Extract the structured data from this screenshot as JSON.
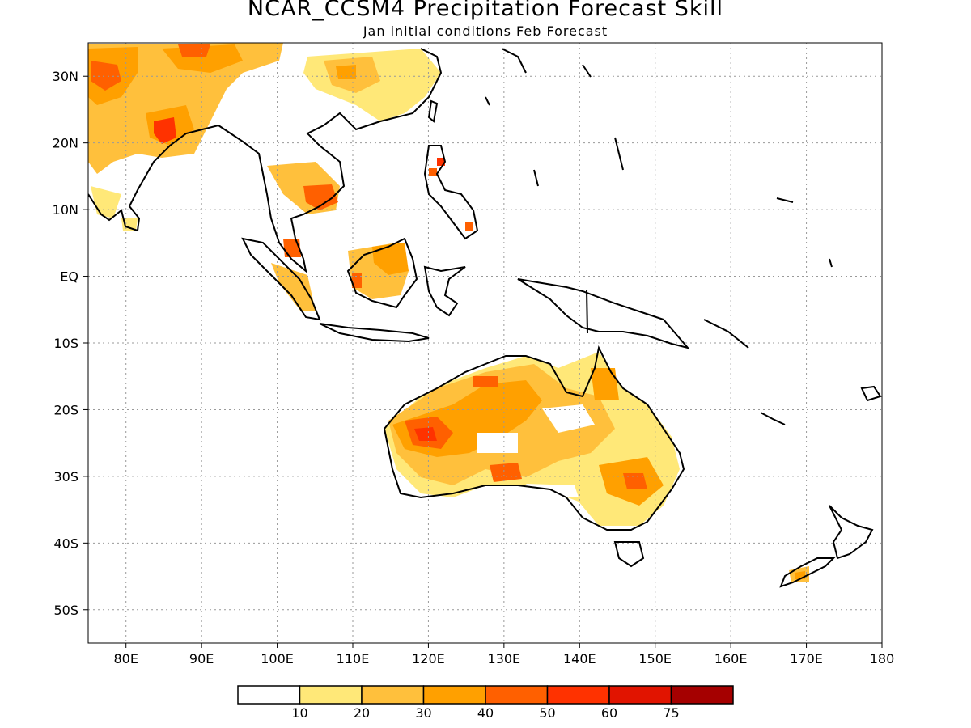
{
  "title": "NCAR_CCSM4 Precipitation Forecast Skill",
  "subtitle": "Jan initial conditions  Feb Forecast",
  "map": {
    "lon_range": [
      75,
      180
    ],
    "lat_range": [
      -55,
      35
    ],
    "lat_ticks": [
      {
        "value": 30,
        "label": "30N"
      },
      {
        "value": 20,
        "label": "20N"
      },
      {
        "value": 10,
        "label": "10N"
      },
      {
        "value": 0,
        "label": "EQ"
      },
      {
        "value": -10,
        "label": "10S"
      },
      {
        "value": -20,
        "label": "20S"
      },
      {
        "value": -30,
        "label": "30S"
      },
      {
        "value": -40,
        "label": "40S"
      },
      {
        "value": -50,
        "label": "50S"
      }
    ],
    "lon_ticks": [
      {
        "value": 80,
        "label": "80E"
      },
      {
        "value": 90,
        "label": "90E"
      },
      {
        "value": 100,
        "label": "100E"
      },
      {
        "value": 110,
        "label": "110E"
      },
      {
        "value": 120,
        "label": "120E"
      },
      {
        "value": 130,
        "label": "130E"
      },
      {
        "value": 140,
        "label": "140E"
      },
      {
        "value": 150,
        "label": "150E"
      },
      {
        "value": 160,
        "label": "160E"
      },
      {
        "value": 170,
        "label": "170E"
      },
      {
        "value": 180,
        "label": "180"
      }
    ],
    "grid": "dotted"
  },
  "colorbar": {
    "colors": [
      "#ffffff",
      "#ffe878",
      "#ffc03c",
      "#ffa000",
      "#ff6000",
      "#ff3200",
      "#e11400",
      "#a50000"
    ],
    "labels": [
      "10",
      "20",
      "30",
      "40",
      "50",
      "60",
      "75"
    ]
  }
}
